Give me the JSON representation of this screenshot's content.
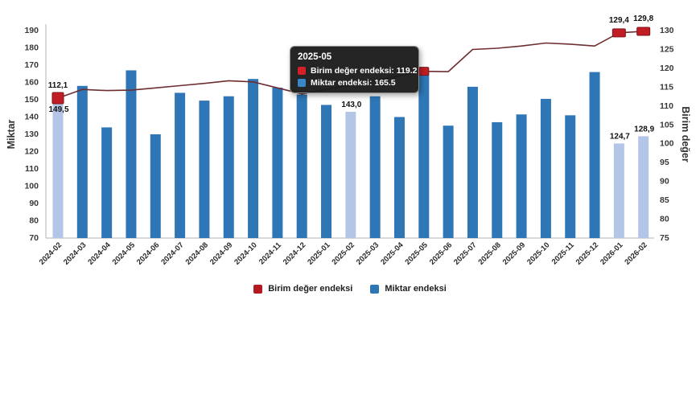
{
  "chart_data": {
    "type": "bar+line",
    "categories": [
      "2024-02",
      "2024-03",
      "2024-04",
      "2024-05",
      "2024-06",
      "2024-07",
      "2024-08",
      "2024-09",
      "2024-10",
      "2024-11",
      "2024-12",
      "2025-01",
      "2025-02",
      "2025-03",
      "2025-04",
      "2025-05",
      "2025-06",
      "2025-07",
      "2025-08",
      "2025-09",
      "2025-10",
      "2025-11",
      "2025-12",
      "2026-01",
      "2026-02"
    ],
    "series": [
      {
        "name": "Miktar endeksi",
        "type": "bar",
        "axis": "left",
        "values": [
          149.5,
          158,
          134,
          167,
          130,
          154,
          149.5,
          152,
          162,
          157,
          153,
          147,
          143,
          152,
          140,
          165.5,
          135,
          157.5,
          137,
          141.5,
          150.5,
          141,
          166,
          124.7,
          128.9
        ],
        "highlight_indices": [
          0,
          12,
          23,
          24
        ],
        "point_labels": {
          "0": "149,5",
          "12": "143,0",
          "23": "124,7",
          "24": "128,9"
        }
      },
      {
        "name": "Birim değer endeksi",
        "type": "line",
        "axis": "right",
        "values": [
          112.1,
          114.4,
          114.1,
          114.2,
          114.8,
          115.4,
          116,
          116.7,
          116.4,
          114.8,
          113.2,
          114.4,
          115.6,
          116.8,
          118,
          119.2,
          119.1,
          125,
          125.3,
          125.9,
          126.7,
          126.4,
          125.9,
          129.4,
          129.8
        ],
        "marker_indices": [
          0,
          15,
          23,
          24
        ],
        "point_labels": {
          "0": "112,1",
          "23": "129,4",
          "24": "129,8"
        }
      }
    ],
    "left_axis": {
      "title": "Miktar",
      "min": 70,
      "max": 190,
      "step": 10
    },
    "right_axis": {
      "title": "Birim değer",
      "min": 75,
      "max": 130,
      "step": 5
    },
    "grid": "off",
    "legend_position": "bottom",
    "colors": {
      "bar": "#2e76b5",
      "bar_highlight": "#b3c6e7",
      "line": "#6e2e31",
      "marker_fill": "#c01e24",
      "marker_stroke": "#801418",
      "axis_line": "#b3b3b3",
      "tick_text": "#383838",
      "data_label": "#111111"
    }
  },
  "tooltip": {
    "title": "2025-05",
    "rows": [
      {
        "text": "Birim değer endeksi: 119.2",
        "color": "#d42027"
      },
      {
        "text": "Miktar endeksi: 165.5",
        "color": "#3a87c8"
      }
    ]
  },
  "legend": {
    "items": [
      {
        "label": "Birim değer endeksi",
        "color": "#b5191f"
      },
      {
        "label": "Miktar endeksi",
        "color": "#2e76b5"
      }
    ]
  }
}
